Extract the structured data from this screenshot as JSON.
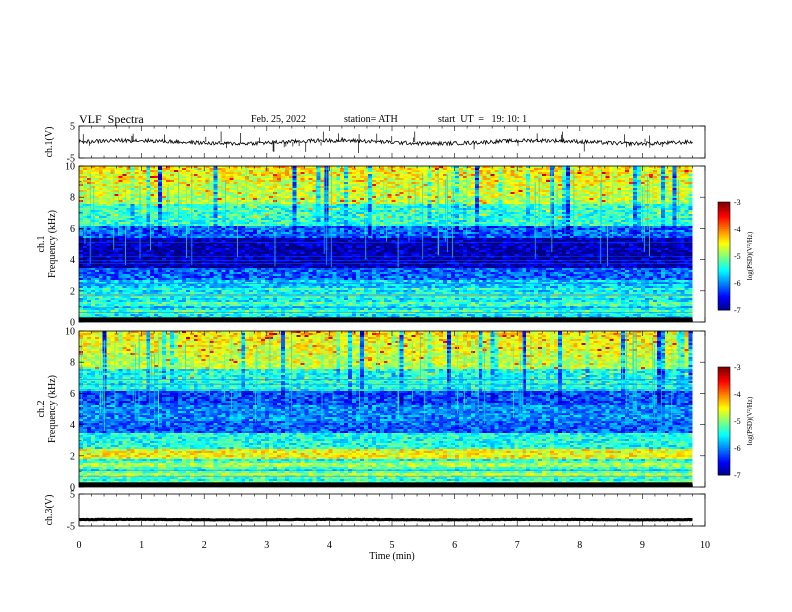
{
  "header": {
    "title": "VLF  Spectra",
    "date": "Feb. 25, 2022",
    "station": "station= ATH",
    "start": "start  UT  =   19: 10: 1"
  },
  "chart_data": [
    {
      "type": "line",
      "name": "ch1-waveform",
      "ylabel": "ch.1(V)",
      "ylim": [
        -5,
        5
      ],
      "yticks": [
        "5",
        "-5"
      ],
      "xlim": [
        0,
        10
      ],
      "data_end": 9.8,
      "level": 0,
      "color": "#000000"
    },
    {
      "type": "heatmap",
      "name": "ch1-spectrogram",
      "ylabel": "ch.1\nFrequency  (kHz)",
      "ylim": [
        0,
        10
      ],
      "yticks": [
        "0",
        "2",
        "4",
        "6",
        "8",
        "10"
      ],
      "xlim": [
        0,
        10
      ],
      "data_end": 9.8,
      "colorbar": {
        "label": "log(PSD)(V²/Hz)",
        "range": [
          -7,
          -3
        ],
        "ticks": [
          "-3",
          "-4",
          "-5",
          "-6",
          "-7"
        ]
      }
    },
    {
      "type": "heatmap",
      "name": "ch2-spectrogram",
      "ylabel": "ch.2\nFrequency  (kHz)",
      "ylim": [
        0,
        10
      ],
      "yticks": [
        "0",
        "2",
        "4",
        "6",
        "8",
        "10"
      ],
      "xlim": [
        0,
        10
      ],
      "data_end": 9.8,
      "colorbar": {
        "label": "log(PSD)(V²/Hz)",
        "range": [
          -7,
          -3
        ],
        "ticks": [
          "-3",
          "-4",
          "-5",
          "-6",
          "-7"
        ]
      }
    },
    {
      "type": "line",
      "name": "ch3-waveform",
      "ylabel": "ch.3(V)",
      "ylim": [
        -5,
        5
      ],
      "yticks": [
        "5",
        "-5"
      ],
      "xlim": [
        0,
        10
      ],
      "data_end": 9.8,
      "level": -3,
      "color": "#000000"
    }
  ],
  "xaxis": {
    "label": "Time  (min)",
    "ticks": [
      "0",
      "1",
      "2",
      "3",
      "4",
      "5",
      "6",
      "7",
      "8",
      "9",
      "10"
    ]
  }
}
